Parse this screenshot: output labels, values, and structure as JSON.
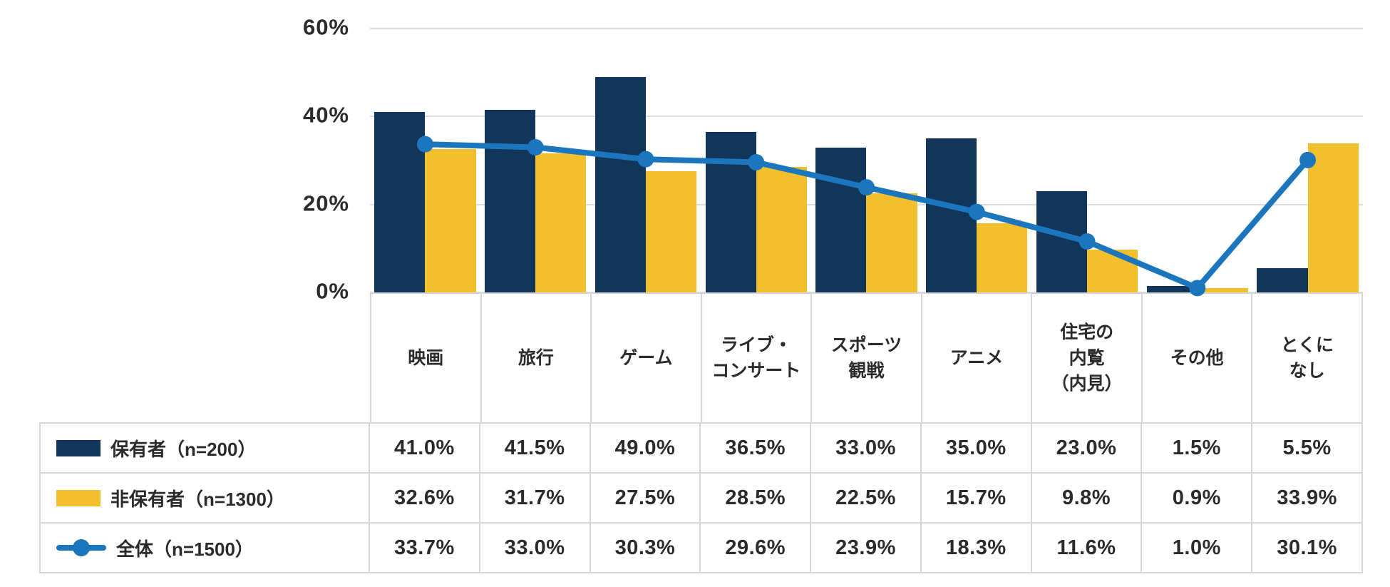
{
  "chart_data": {
    "type": "bar",
    "subtype": "grouped-bar-with-line-overlay",
    "title": "",
    "categories": [
      "映画",
      "旅行",
      "ゲーム",
      "ライブ・\nコンサート",
      "スポーツ\n観戦",
      "アニメ",
      "住宅の\n内覧\n（内見）",
      "その他",
      "とくに\nなし"
    ],
    "series": [
      {
        "name": "保有者（n=200）",
        "type": "bar",
        "color": "#12355c",
        "values": [
          41.0,
          41.5,
          49.0,
          36.5,
          33.0,
          35.0,
          23.0,
          1.5,
          5.5
        ]
      },
      {
        "name": "非保有者（n=1300）",
        "type": "bar",
        "color": "#f2c02c",
        "values": [
          32.6,
          31.7,
          27.5,
          28.5,
          22.5,
          15.7,
          9.8,
          0.9,
          33.9
        ]
      },
      {
        "name": "全体（n=1500）",
        "type": "line",
        "color": "#1c76be",
        "values": [
          33.7,
          33.0,
          30.3,
          29.6,
          23.9,
          18.3,
          11.6,
          1.0,
          30.1
        ]
      }
    ],
    "table_values": [
      [
        "41.0%",
        "41.5%",
        "49.0%",
        "36.5%",
        "33.0%",
        "35.0%",
        "23.0%",
        "1.5%",
        "5.5%"
      ],
      [
        "32.6%",
        "31.7%",
        "27.5%",
        "28.5%",
        "22.5%",
        "15.7%",
        "9.8%",
        "0.9%",
        "33.9%"
      ],
      [
        "33.7%",
        "33.0%",
        "30.3%",
        "29.6%",
        "23.9%",
        "18.3%",
        "11.6%",
        "1.0%",
        "30.1%"
      ]
    ],
    "y_axis": {
      "ticks": [
        "60%",
        "40%",
        "20%",
        "0%"
      ],
      "tick_values": [
        60,
        40,
        20,
        0
      ],
      "min": 0,
      "max": 60,
      "grid": true
    },
    "legend_position": "table-left",
    "colors": {
      "grid": "#dcdcdc",
      "table_border": "#d7d7da",
      "text": "#2b2b2b"
    }
  }
}
